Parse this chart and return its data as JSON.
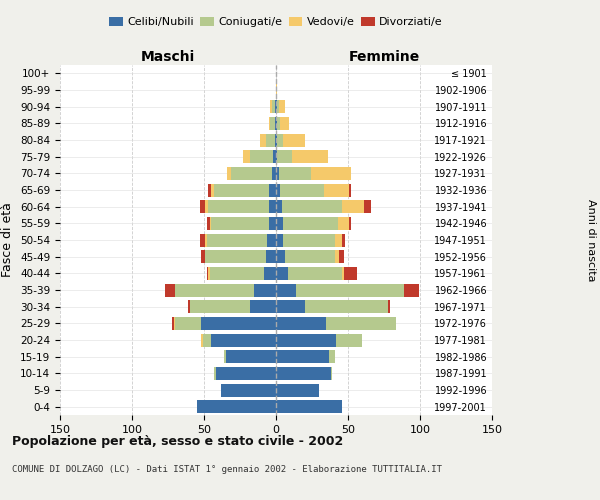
{
  "age_groups": [
    "0-4",
    "5-9",
    "10-14",
    "15-19",
    "20-24",
    "25-29",
    "30-34",
    "35-39",
    "40-44",
    "45-49",
    "50-54",
    "55-59",
    "60-64",
    "65-69",
    "70-74",
    "75-79",
    "80-84",
    "85-89",
    "90-94",
    "95-99",
    "100+"
  ],
  "birth_years": [
    "1997-2001",
    "1992-1996",
    "1987-1991",
    "1982-1986",
    "1977-1981",
    "1972-1976",
    "1967-1971",
    "1962-1966",
    "1957-1961",
    "1952-1956",
    "1947-1951",
    "1942-1946",
    "1937-1941",
    "1932-1936",
    "1927-1931",
    "1922-1926",
    "1917-1921",
    "1912-1916",
    "1907-1911",
    "1902-1906",
    "≤ 1901"
  ],
  "maschi": {
    "celibi": [
      55,
      38,
      42,
      35,
      45,
      52,
      18,
      15,
      8,
      7,
      6,
      5,
      5,
      5,
      3,
      2,
      1,
      1,
      1,
      0,
      0
    ],
    "coniugati": [
      0,
      0,
      1,
      1,
      6,
      18,
      42,
      55,
      38,
      42,
      42,
      40,
      42,
      38,
      28,
      16,
      6,
      3,
      2,
      0,
      0
    ],
    "vedovi": [
      0,
      0,
      0,
      0,
      1,
      1,
      0,
      0,
      1,
      0,
      1,
      1,
      2,
      2,
      3,
      5,
      4,
      1,
      1,
      0,
      0
    ],
    "divorziati": [
      0,
      0,
      0,
      0,
      0,
      1,
      1,
      7,
      1,
      3,
      4,
      2,
      4,
      2,
      0,
      0,
      0,
      0,
      0,
      0,
      0
    ]
  },
  "femmine": {
    "nubili": [
      46,
      30,
      38,
      37,
      42,
      35,
      20,
      14,
      8,
      6,
      5,
      5,
      4,
      3,
      2,
      1,
      1,
      1,
      1,
      0,
      0
    ],
    "coniugate": [
      0,
      0,
      1,
      4,
      18,
      48,
      58,
      75,
      38,
      35,
      36,
      38,
      42,
      30,
      22,
      10,
      4,
      2,
      1,
      0,
      0
    ],
    "vedove": [
      0,
      0,
      0,
      0,
      0,
      0,
      0,
      0,
      1,
      3,
      5,
      8,
      15,
      18,
      28,
      25,
      15,
      6,
      4,
      1,
      0
    ],
    "divorziate": [
      0,
      0,
      0,
      0,
      0,
      0,
      1,
      10,
      9,
      3,
      2,
      1,
      5,
      1,
      0,
      0,
      0,
      0,
      0,
      0,
      0
    ]
  },
  "color_celibi": "#3a6ea5",
  "color_coniugati": "#b5c98e",
  "color_vedovi": "#f5c96a",
  "color_divorziati": "#c0392b",
  "xlim": 150,
  "title": "Popolazione per età, sesso e stato civile - 2002",
  "subtitle": "COMUNE DI DOLZAGO (LC) - Dati ISTAT 1° gennaio 2002 - Elaborazione TUTTITALIA.IT",
  "ylabel_left": "Fasce di età",
  "ylabel_right": "Anni di nascita",
  "xlabel_maschi": "Maschi",
  "xlabel_femmine": "Femmine",
  "bg_color": "#f0f0eb",
  "plot_bg": "#ffffff"
}
